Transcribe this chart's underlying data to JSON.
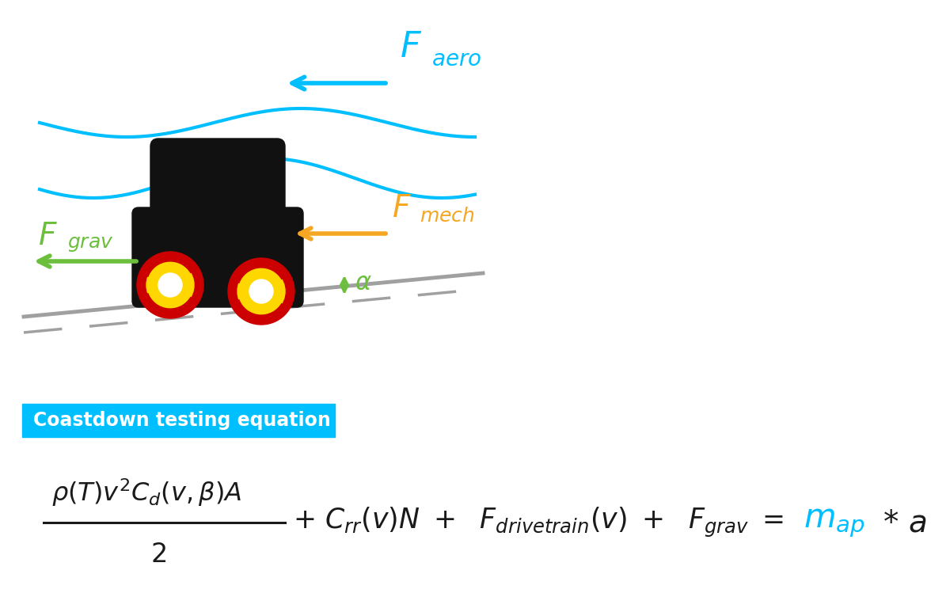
{
  "bg_color": "#ffffff",
  "cyan_color": "#00BFFF",
  "green_color": "#6BBF3C",
  "orange_color": "#F5A623",
  "black_color": "#1a1a1a",
  "red_color": "#CC0000",
  "yellow_color": "#FFD700",
  "gray_color": "#A0A0A0",
  "label_text": "Coastdown testing equation",
  "fig_width": 12.0,
  "fig_height": 7.73
}
